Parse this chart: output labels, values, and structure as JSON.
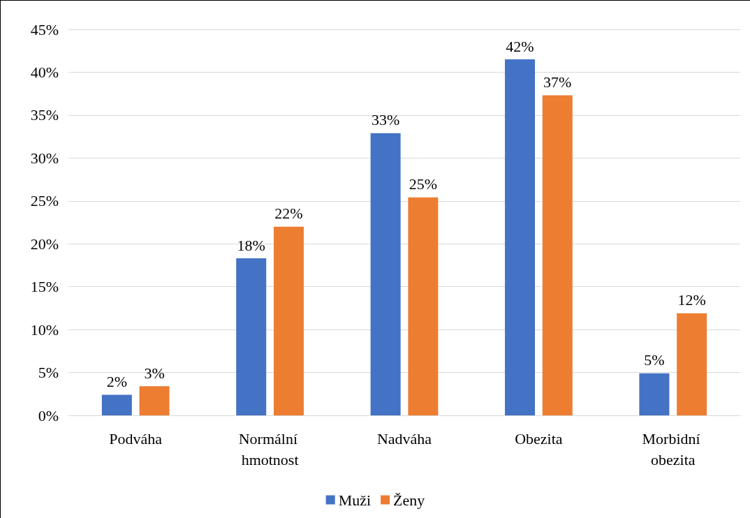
{
  "chart_data": {
    "type": "bar",
    "categories": [
      "Podváha",
      "Normální hmotnost",
      "Nadváha",
      "Obezita",
      "Morbidní obezita"
    ],
    "series": [
      {
        "name": "Muži",
        "color": "#4472c4",
        "values": [
          2.4,
          18.3,
          32.9,
          41.5,
          4.9
        ],
        "value_labels": [
          "2%",
          "18%",
          "33%",
          "42%",
          "5%"
        ]
      },
      {
        "name": "Ženy",
        "color": "#ed7d31",
        "values": [
          3.4,
          22.0,
          25.4,
          37.3,
          11.9
        ],
        "value_labels": [
          "3%",
          "22%",
          "25%",
          "37%",
          "12%"
        ]
      }
    ],
    "ylim": [
      0,
      45
    ],
    "yticks": [
      {
        "value": 0,
        "label": "0%"
      },
      {
        "value": 5,
        "label": "5%"
      },
      {
        "value": 10,
        "label": "10%"
      },
      {
        "value": 15,
        "label": "15%"
      },
      {
        "value": 20,
        "label": "20%"
      },
      {
        "value": 25,
        "label": "25%"
      },
      {
        "value": 30,
        "label": "30%"
      },
      {
        "value": 35,
        "label": "35%"
      },
      {
        "value": 40,
        "label": "40%"
      },
      {
        "value": 45,
        "label": "45%"
      }
    ],
    "grid": "y",
    "legend": "bottom"
  }
}
